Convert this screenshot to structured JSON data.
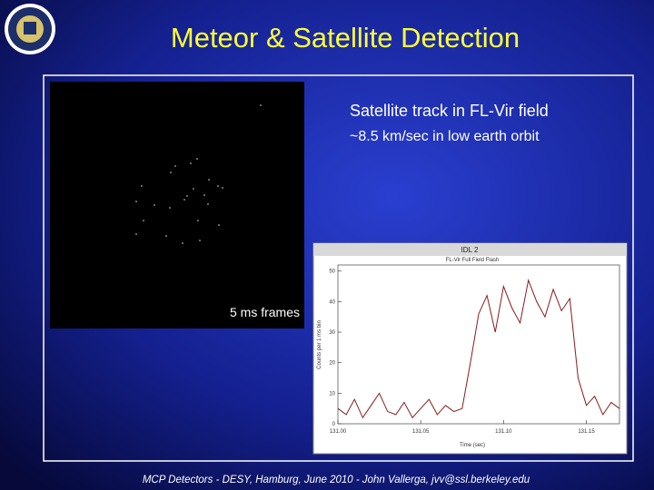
{
  "title": "Meteor & Satellite Detection",
  "image_label": "5 ms frames",
  "bullets": [
    "Satellite track in FL-Vir field",
    "~8.5 km/sec in low earth orbit"
  ],
  "window": {
    "title": "IDL 2",
    "plot": {
      "type": "line",
      "title": "FL-Vir Full Field Flash",
      "x_label": "Time (sec)",
      "y_label": "Counts per 1 ms bin",
      "x": [
        131.0,
        131.005,
        131.01,
        131.015,
        131.02,
        131.025,
        131.03,
        131.035,
        131.04,
        131.045,
        131.05,
        131.055,
        131.06,
        131.065,
        131.07,
        131.075,
        131.08,
        131.085,
        131.09,
        131.095,
        131.1,
        131.105,
        131.11,
        131.115,
        131.12,
        131.125,
        131.13,
        131.135,
        131.14,
        131.145,
        131.15,
        131.155,
        131.16,
        131.165,
        131.17
      ],
      "values": [
        5,
        3,
        8,
        2,
        6,
        10,
        4,
        3,
        7,
        2,
        5,
        8,
        3,
        6,
        4,
        5,
        20,
        36,
        42,
        30,
        45,
        38,
        33,
        47,
        40,
        35,
        44,
        37,
        41,
        15,
        6,
        9,
        3,
        7,
        5
      ],
      "color": "#8b1a1a",
      "xlim": [
        131.0,
        131.17
      ],
      "xticks": [
        {
          "value": 131.0,
          "label": "131.00"
        },
        {
          "value": 131.05,
          "label": "131.05"
        },
        {
          "value": 131.1,
          "label": "131.10"
        },
        {
          "value": 131.15,
          "label": "131.15"
        }
      ],
      "ylim": [
        0,
        52
      ],
      "yticks": [
        0,
        10,
        20,
        30,
        40,
        50
      ]
    }
  },
  "footer": "MCP Detectors - DESY, Hamburg, June 2010 - John Vallerga, jvv@ssl.berkeley.edu"
}
